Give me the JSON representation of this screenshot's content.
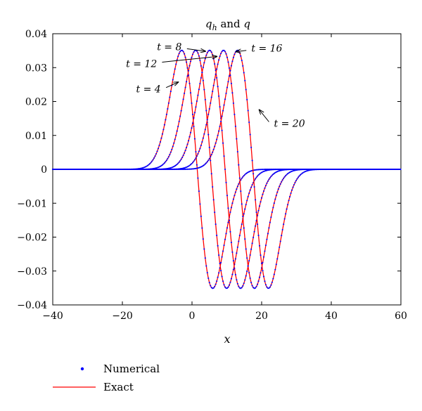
{
  "chart_data": {
    "type": "line",
    "title_main": "q",
    "title_sub": "h",
    "title_rest": " and ",
    "title_end": "q",
    "xlabel": "x",
    "ylabel": "",
    "xlim": [
      -40,
      60
    ],
    "ylim": [
      -0.04,
      0.04
    ],
    "xticks": [
      -40,
      -20,
      0,
      20,
      40,
      60
    ],
    "yticks": [
      -0.04,
      -0.03,
      -0.02,
      -0.01,
      0,
      0.01,
      0.02,
      0.03,
      0.04
    ],
    "xtick_labels": [
      "−40",
      "−20",
      "0",
      "20",
      "40",
      "60"
    ],
    "ytick_labels": [
      "−0.04",
      "−0.03",
      "−0.02",
      "−0.01",
      "0",
      "0.01",
      "0.02",
      "0.03",
      "0.04"
    ],
    "grid": false,
    "legend_position": "bottom-left",
    "series": [
      {
        "name": "Numerical",
        "style": "dots",
        "color": "#0000ff"
      },
      {
        "name": "Exact",
        "style": "line",
        "color": "#ff0000"
      }
    ],
    "curves": [
      {
        "t": 4,
        "center": 1.5,
        "amplitude": 0.0351,
        "width": 4.45
      },
      {
        "t": 8,
        "center": 5.5,
        "amplitude": 0.0351,
        "width": 4.45
      },
      {
        "t": 12,
        "center": 9.5,
        "amplitude": 0.0351,
        "width": 4.45
      },
      {
        "t": 16,
        "center": 13.5,
        "amplitude": 0.0351,
        "width": 4.45
      },
      {
        "t": 20,
        "center": 17.5,
        "amplitude": 0.0351,
        "width": 4.45
      }
    ],
    "annotations": [
      {
        "label": "t = 8",
        "text_x": -6.5,
        "text_y": 0.0362,
        "arrow_to_x": 4.0,
        "arrow_to_y": 0.0348
      },
      {
        "label": "t = 12",
        "text_x": -14.5,
        "text_y": 0.0312,
        "arrow_to_x": 7.3,
        "arrow_to_y": 0.0333
      },
      {
        "label": "t = 4",
        "text_x": -12.5,
        "text_y": 0.0237,
        "arrow_to_x": -3.8,
        "arrow_to_y": 0.0258
      },
      {
        "label": "t = 16",
        "text_x": 21.5,
        "text_y": 0.0357,
        "arrow_to_x": 12.5,
        "arrow_to_y": 0.0347
      },
      {
        "label": "t = 20",
        "text_x": 28.0,
        "text_y": 0.0136,
        "arrow_to_x": 19.2,
        "arrow_to_y": 0.0177
      }
    ],
    "colors": {
      "numerical": "#0000ff",
      "exact": "#ff0000",
      "axes": "#000000"
    }
  }
}
